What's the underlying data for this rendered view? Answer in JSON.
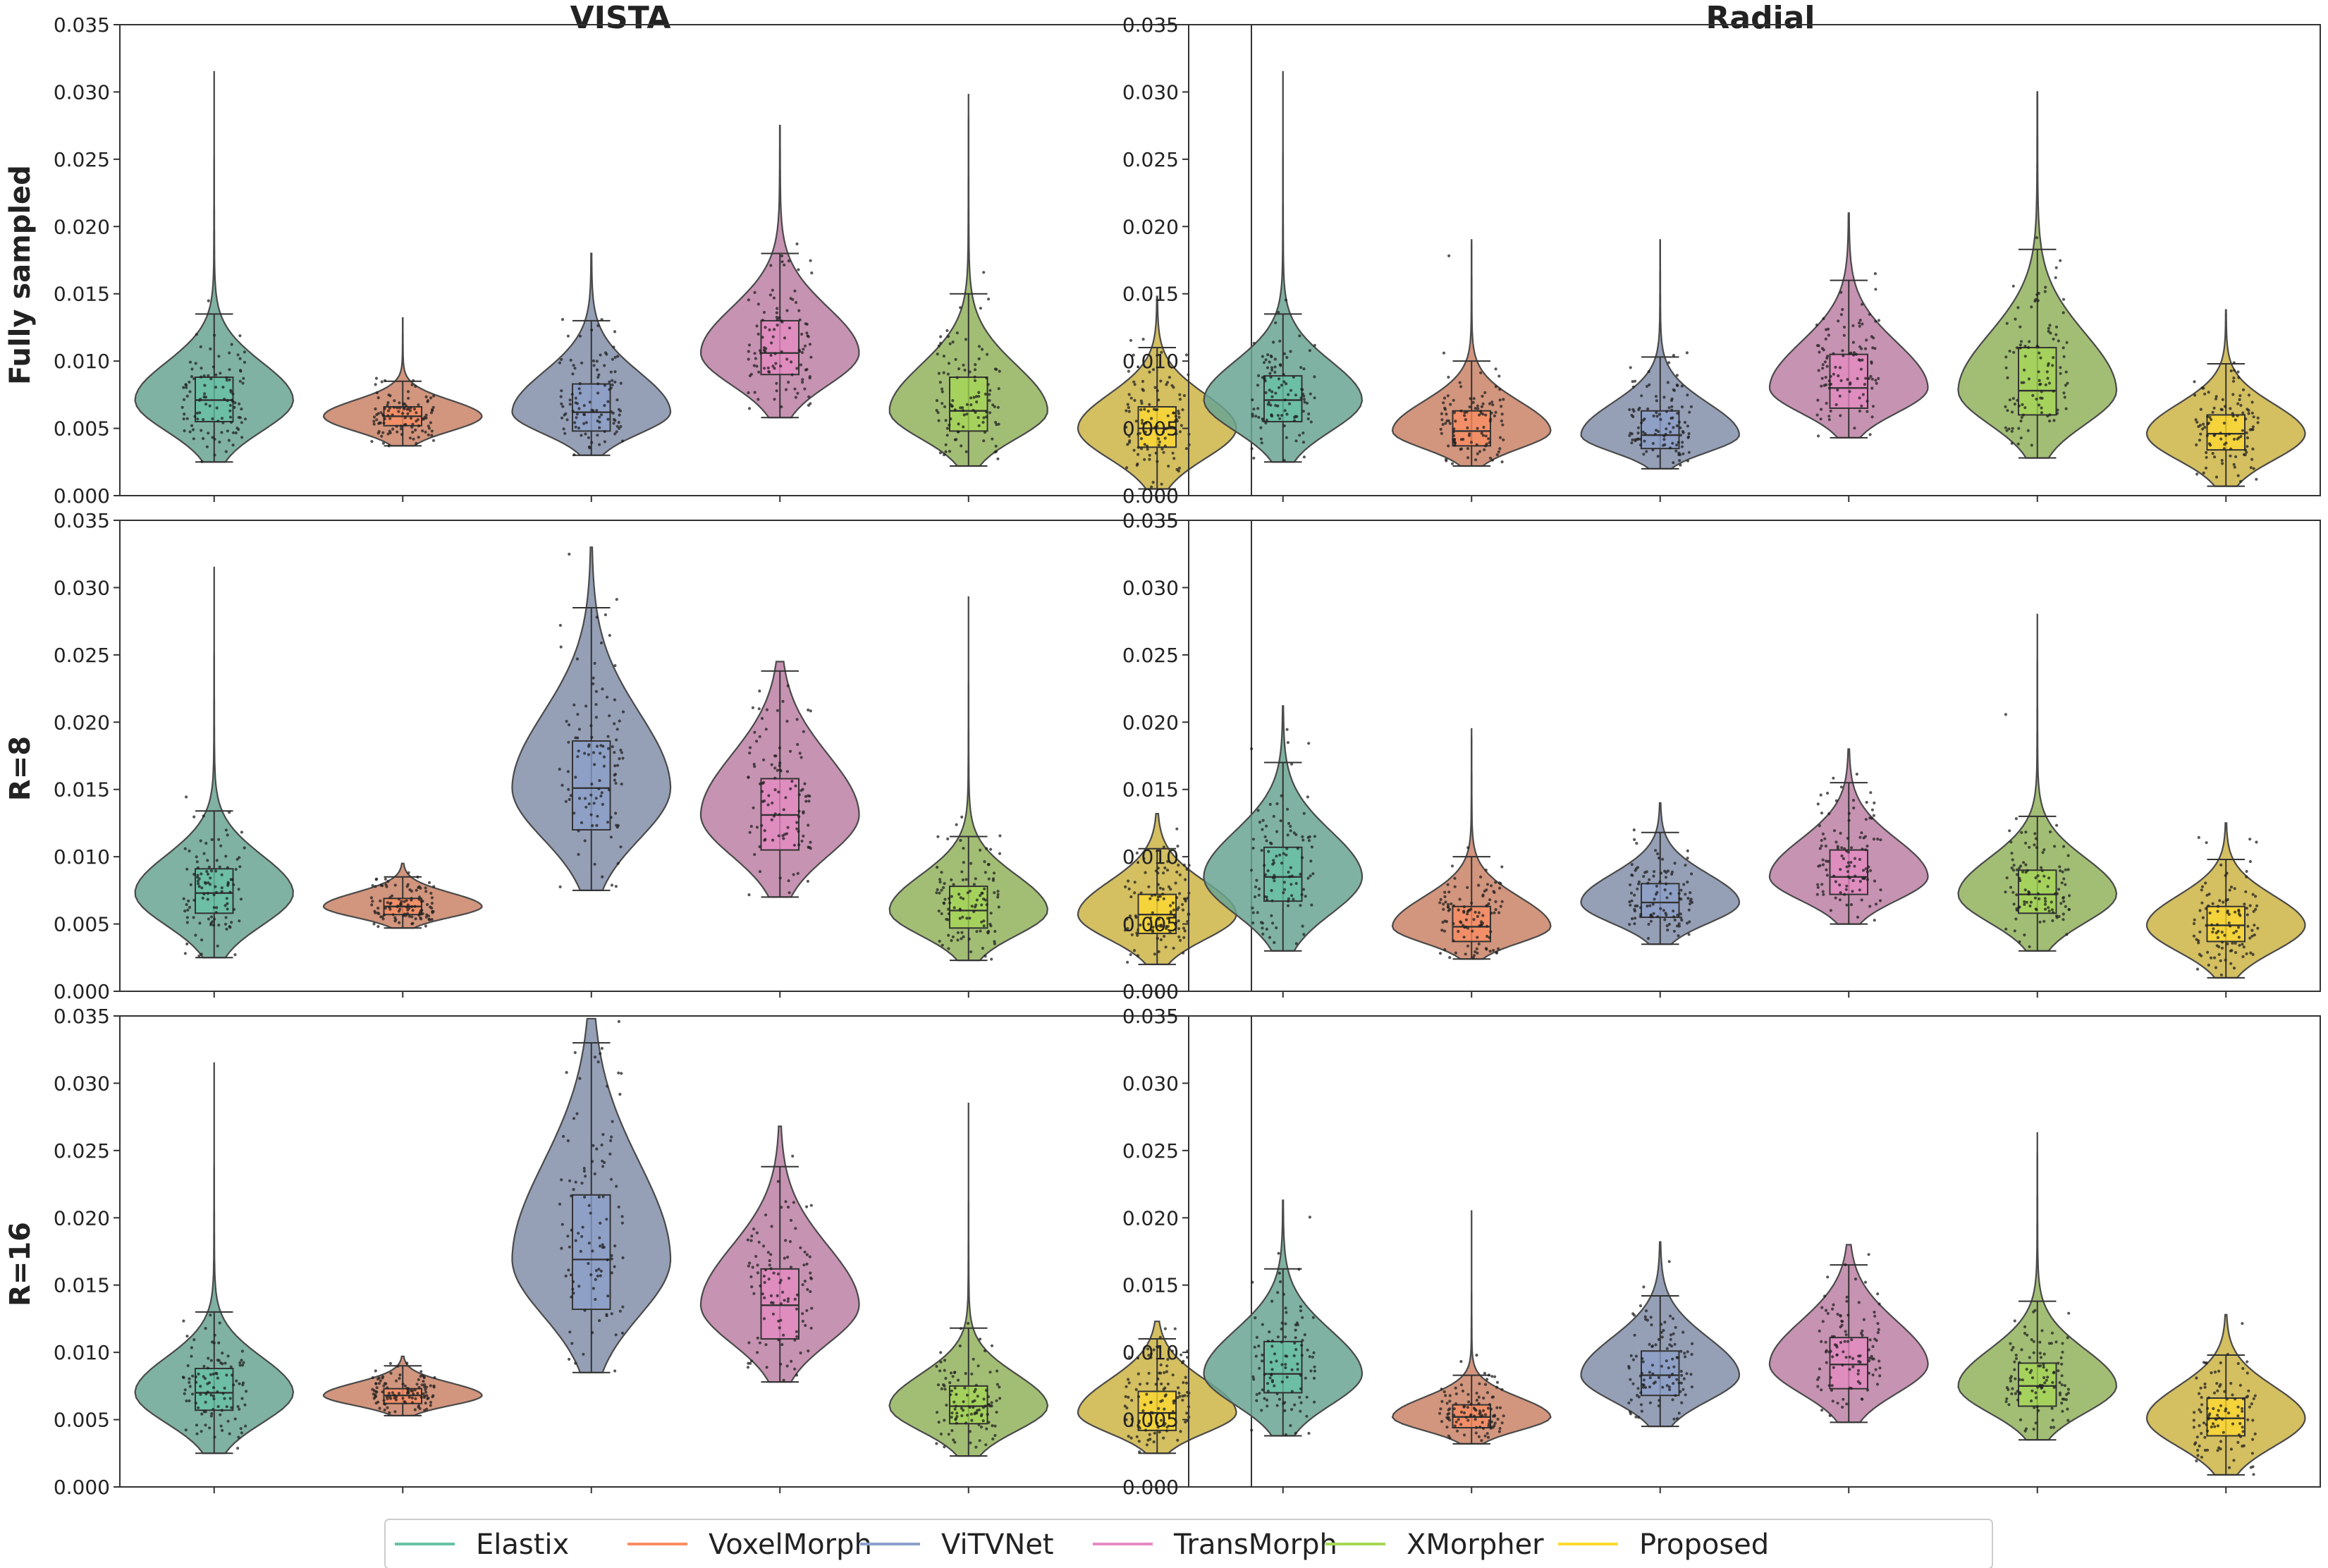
{
  "column_titles": [
    "VISTA",
    "Radial"
  ],
  "row_titles": [
    "Fully sampled",
    "R=8",
    "R=16"
  ],
  "legend": [
    {
      "label": "Elastix",
      "color": "#66c2a5"
    },
    {
      "label": "VoxelMorph",
      "color": "#fc8d62"
    },
    {
      "label": "ViTVNet",
      "color": "#8da0cb"
    },
    {
      "label": "TransMorph",
      "color": "#e78ac3"
    },
    {
      "label": "XMorpher",
      "color": "#a6d854"
    },
    {
      "label": "Proposed",
      "color": "#ffd92f"
    }
  ],
  "chart_data": {
    "type": "violin",
    "ylim": [
      0,
      0.035
    ],
    "y_ticks": [
      "0.000",
      "0.005",
      "0.010",
      "0.015",
      "0.020",
      "0.025",
      "0.030",
      "0.035"
    ],
    "categories": [
      "Elastix",
      "VoxelMorph",
      "ViTVNet",
      "TransMorph",
      "XMorpher",
      "Proposed"
    ],
    "panels": [
      {
        "column": "VISTA",
        "row": "Fully sampled",
        "series": [
          {
            "name": "Elastix",
            "min": 0.0025,
            "q1": 0.0055,
            "median": 0.0071,
            "q3": 0.0088,
            "whisker_high": 0.0135,
            "max": 0.0315
          },
          {
            "name": "VoxelMorph",
            "min": 0.0037,
            "q1": 0.0052,
            "median": 0.0059,
            "q3": 0.0066,
            "whisker_high": 0.0085,
            "max": 0.0132
          },
          {
            "name": "ViTVNet",
            "min": 0.003,
            "q1": 0.0048,
            "median": 0.0062,
            "q3": 0.0083,
            "whisker_high": 0.013,
            "max": 0.018
          },
          {
            "name": "TransMorph",
            "min": 0.0058,
            "q1": 0.009,
            "median": 0.0106,
            "q3": 0.013,
            "whisker_high": 0.018,
            "max": 0.0275
          },
          {
            "name": "XMorpher",
            "min": 0.0022,
            "q1": 0.0048,
            "median": 0.0063,
            "q3": 0.0088,
            "whisker_high": 0.015,
            "max": 0.0298
          },
          {
            "name": "Proposed",
            "min": 0.0005,
            "q1": 0.0036,
            "median": 0.005,
            "q3": 0.0066,
            "whisker_high": 0.011,
            "max": 0.0148
          }
        ]
      },
      {
        "column": "Radial",
        "row": "Fully sampled",
        "series": [
          {
            "name": "Elastix",
            "min": 0.0025,
            "q1": 0.0055,
            "median": 0.0071,
            "q3": 0.0089,
            "whisker_high": 0.0135,
            "max": 0.0315
          },
          {
            "name": "VoxelMorph",
            "min": 0.0022,
            "q1": 0.0037,
            "median": 0.0048,
            "q3": 0.0063,
            "whisker_high": 0.01,
            "max": 0.019
          },
          {
            "name": "ViTVNet",
            "min": 0.002,
            "q1": 0.0035,
            "median": 0.0045,
            "q3": 0.0063,
            "whisker_high": 0.0103,
            "max": 0.019
          },
          {
            "name": "TransMorph",
            "min": 0.0043,
            "q1": 0.0065,
            "median": 0.008,
            "q3": 0.0105,
            "whisker_high": 0.016,
            "max": 0.021
          },
          {
            "name": "XMorpher",
            "min": 0.0028,
            "q1": 0.006,
            "median": 0.0078,
            "q3": 0.011,
            "whisker_high": 0.0183,
            "max": 0.03
          },
          {
            "name": "Proposed",
            "min": 0.0007,
            "q1": 0.0034,
            "median": 0.0046,
            "q3": 0.006,
            "whisker_high": 0.0098,
            "max": 0.0138
          }
        ]
      },
      {
        "column": "VISTA",
        "row": "R=8",
        "series": [
          {
            "name": "Elastix",
            "min": 0.0025,
            "q1": 0.0058,
            "median": 0.0073,
            "q3": 0.0091,
            "whisker_high": 0.0134,
            "max": 0.0315
          },
          {
            "name": "VoxelMorph",
            "min": 0.0047,
            "q1": 0.0057,
            "median": 0.0063,
            "q3": 0.0069,
            "whisker_high": 0.0085,
            "max": 0.0095
          },
          {
            "name": "ViTVNet",
            "min": 0.0075,
            "q1": 0.012,
            "median": 0.0151,
            "q3": 0.0186,
            "whisker_high": 0.0285,
            "max": 0.033
          },
          {
            "name": "TransMorph",
            "min": 0.007,
            "q1": 0.0105,
            "median": 0.0131,
            "q3": 0.0158,
            "whisker_high": 0.0238,
            "max": 0.0245
          },
          {
            "name": "XMorpher",
            "min": 0.0023,
            "q1": 0.0047,
            "median": 0.006,
            "q3": 0.0078,
            "whisker_high": 0.0115,
            "max": 0.0293
          },
          {
            "name": "Proposed",
            "min": 0.002,
            "q1": 0.0043,
            "median": 0.0057,
            "q3": 0.0072,
            "whisker_high": 0.0106,
            "max": 0.0132
          }
        ]
      },
      {
        "column": "Radial",
        "row": "R=8",
        "series": [
          {
            "name": "Elastix",
            "min": 0.003,
            "q1": 0.0067,
            "median": 0.0085,
            "q3": 0.0107,
            "whisker_high": 0.017,
            "max": 0.0212
          },
          {
            "name": "VoxelMorph",
            "min": 0.0024,
            "q1": 0.0037,
            "median": 0.0048,
            "q3": 0.0063,
            "whisker_high": 0.01,
            "max": 0.0195
          },
          {
            "name": "ViTVNet",
            "min": 0.0035,
            "q1": 0.0055,
            "median": 0.0066,
            "q3": 0.008,
            "whisker_high": 0.0118,
            "max": 0.014
          },
          {
            "name": "TransMorph",
            "min": 0.005,
            "q1": 0.0072,
            "median": 0.0085,
            "q3": 0.0105,
            "whisker_high": 0.0155,
            "max": 0.018
          },
          {
            "name": "XMorpher",
            "min": 0.003,
            "q1": 0.0058,
            "median": 0.0072,
            "q3": 0.009,
            "whisker_high": 0.013,
            "max": 0.028
          },
          {
            "name": "Proposed",
            "min": 0.001,
            "q1": 0.0037,
            "median": 0.0049,
            "q3": 0.0063,
            "whisker_high": 0.0098,
            "max": 0.0125
          }
        ]
      },
      {
        "column": "VISTA",
        "row": "R=16",
        "series": [
          {
            "name": "Elastix",
            "min": 0.0025,
            "q1": 0.0057,
            "median": 0.007,
            "q3": 0.0088,
            "whisker_high": 0.013,
            "max": 0.0315
          },
          {
            "name": "VoxelMorph",
            "min": 0.0053,
            "q1": 0.0062,
            "median": 0.0068,
            "q3": 0.0073,
            "whisker_high": 0.009,
            "max": 0.0097
          },
          {
            "name": "ViTVNet",
            "min": 0.0085,
            "q1": 0.0132,
            "median": 0.0169,
            "q3": 0.0217,
            "whisker_high": 0.033,
            "max": 0.0348
          },
          {
            "name": "TransMorph",
            "min": 0.0078,
            "q1": 0.011,
            "median": 0.0135,
            "q3": 0.0162,
            "whisker_high": 0.0238,
            "max": 0.0268
          },
          {
            "name": "XMorpher",
            "min": 0.0023,
            "q1": 0.0047,
            "median": 0.006,
            "q3": 0.0075,
            "whisker_high": 0.0118,
            "max": 0.0285
          },
          {
            "name": "Proposed",
            "min": 0.0025,
            "q1": 0.0042,
            "median": 0.0055,
            "q3": 0.0071,
            "whisker_high": 0.011,
            "max": 0.0123
          }
        ]
      },
      {
        "column": "Radial",
        "row": "R=16",
        "series": [
          {
            "name": "Elastix",
            "min": 0.0038,
            "q1": 0.007,
            "median": 0.0084,
            "q3": 0.0108,
            "whisker_high": 0.0162,
            "max": 0.0213
          },
          {
            "name": "VoxelMorph",
            "min": 0.0032,
            "q1": 0.0044,
            "median": 0.0052,
            "q3": 0.0061,
            "whisker_high": 0.0083,
            "max": 0.0205
          },
          {
            "name": "ViTVNet",
            "min": 0.0045,
            "q1": 0.0068,
            "median": 0.0083,
            "q3": 0.0101,
            "whisker_high": 0.0142,
            "max": 0.0182
          },
          {
            "name": "TransMorph",
            "min": 0.0048,
            "q1": 0.0073,
            "median": 0.0091,
            "q3": 0.0111,
            "whisker_high": 0.0165,
            "max": 0.018
          },
          {
            "name": "XMorpher",
            "min": 0.0035,
            "q1": 0.006,
            "median": 0.0075,
            "q3": 0.0092,
            "whisker_high": 0.0138,
            "max": 0.0263
          },
          {
            "name": "Proposed",
            "min": 0.0009,
            "q1": 0.0038,
            "median": 0.0051,
            "q3": 0.0066,
            "whisker_high": 0.0098,
            "max": 0.0128
          }
        ]
      }
    ]
  }
}
